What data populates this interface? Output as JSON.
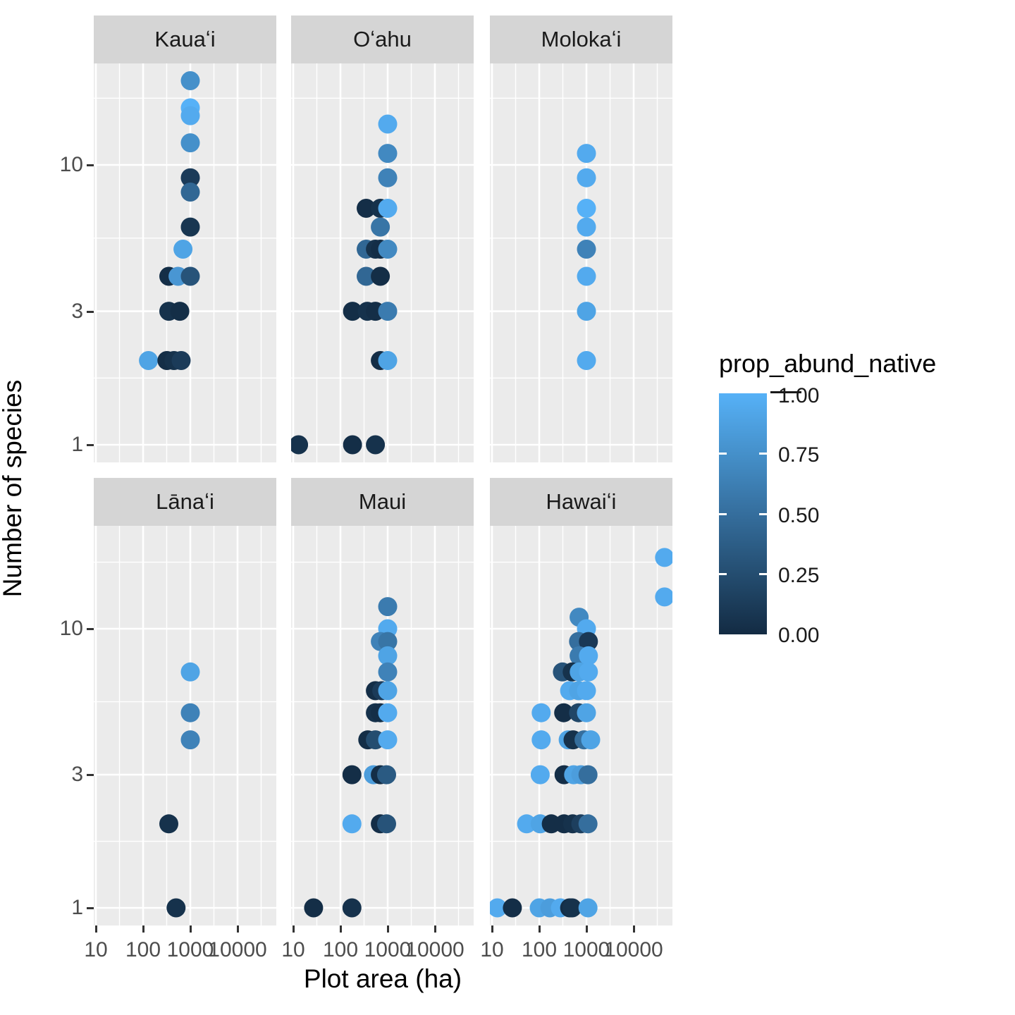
{
  "axes": {
    "x_title": "Plot area (ha)",
    "y_title": "Number of species",
    "y_tick_labels": [
      "10",
      "3",
      "1"
    ],
    "x_tick_labels": [
      "10",
      "100",
      "1000",
      "10000"
    ]
  },
  "legend": {
    "title": "prop_abund_native",
    "labels": [
      "1.00",
      "0.75",
      "0.50",
      "0.25",
      "0.00"
    ],
    "color_high": "#56B1F7",
    "color_low": "#132B43"
  },
  "style": {
    "panel_background": "#EBEBEB",
    "strip_background": "#D5D5D5",
    "gridline_color": "#FFFFFF"
  },
  "chart_data": {
    "type": "scatter",
    "facet_variable": "island",
    "facets_order": [
      "Kauaʻi",
      "Oʻahu",
      "Molokaʻi",
      "Lānaʻi",
      "Maui",
      "Hawaiʻi"
    ],
    "xlabel": "Plot area (ha)",
    "ylabel": "Number of species",
    "x_scale": "log10",
    "y_scale": "log10",
    "x_ticks": [
      10,
      100,
      1000,
      10000
    ],
    "y_ticks": [
      1,
      3,
      10
    ],
    "x_range_log10": [
      0.955,
      4.82
    ],
    "y_range_approx": [
      0.87,
      25
    ],
    "grid": true,
    "legend_position": "right",
    "color": {
      "variable": "prop_abund_native",
      "low": "#132B43",
      "high": "#56B1F7",
      "breaks": [
        0,
        0.25,
        0.5,
        0.75,
        1
      ]
    },
    "series": [
      {
        "name": "Kauaʻi",
        "points": [
          {
            "area": 1000,
            "species": 20,
            "prop": 0.75
          },
          {
            "area": 1000,
            "species": 16,
            "prop": 1.0
          },
          {
            "area": 1000,
            "species": 15,
            "prop": 0.95
          },
          {
            "area": 1000,
            "species": 12,
            "prop": 0.75
          },
          {
            "area": 1000,
            "species": 9,
            "prop": 0.12
          },
          {
            "area": 1000,
            "species": 8,
            "prop": 0.45
          },
          {
            "area": 1000,
            "species": 6,
            "prop": 0.08
          },
          {
            "area": 700,
            "species": 5,
            "prop": 0.9
          },
          {
            "area": 350,
            "species": 4,
            "prop": 0.02
          },
          {
            "area": 550,
            "species": 4,
            "prop": 0.8
          },
          {
            "area": 1000,
            "species": 4,
            "prop": 0.3
          },
          {
            "area": 350,
            "species": 3,
            "prop": 0.05
          },
          {
            "area": 600,
            "species": 3,
            "prop": 0.02
          },
          {
            "area": 130,
            "species": 2,
            "prop": 0.9
          },
          {
            "area": 320,
            "species": 2,
            "prop": 0.02
          },
          {
            "area": 450,
            "species": 2,
            "prop": 0.05
          },
          {
            "area": 640,
            "species": 2,
            "prop": 0.12
          }
        ]
      },
      {
        "name": "Oʻahu",
        "points": [
          {
            "area": 1000,
            "species": 14,
            "prop": 0.95
          },
          {
            "area": 1000,
            "species": 11,
            "prop": 0.7
          },
          {
            "area": 1000,
            "species": 9,
            "prop": 0.65
          },
          {
            "area": 350,
            "species": 7,
            "prop": 0.02
          },
          {
            "area": 700,
            "species": 7,
            "prop": 0.05
          },
          {
            "area": 1000,
            "species": 7,
            "prop": 0.95
          },
          {
            "area": 700,
            "species": 6,
            "prop": 0.55
          },
          {
            "area": 350,
            "species": 5,
            "prop": 0.45
          },
          {
            "area": 550,
            "species": 5,
            "prop": 0.05
          },
          {
            "area": 700,
            "species": 5,
            "prop": 0.02
          },
          {
            "area": 1000,
            "species": 5,
            "prop": 0.7
          },
          {
            "area": 350,
            "species": 4,
            "prop": 0.45
          },
          {
            "area": 700,
            "species": 4,
            "prop": 0.02
          },
          {
            "area": 180,
            "species": 3,
            "prop": 0.02
          },
          {
            "area": 370,
            "species": 3,
            "prop": 0.05
          },
          {
            "area": 550,
            "species": 3,
            "prop": 0.02
          },
          {
            "area": 1000,
            "species": 3,
            "prop": 0.6
          },
          {
            "area": 700,
            "species": 2,
            "prop": 0.02
          },
          {
            "area": 1000,
            "species": 2,
            "prop": 0.9
          },
          {
            "area": 13,
            "species": 1,
            "prop": 0.05
          },
          {
            "area": 180,
            "species": 1,
            "prop": 0.02
          },
          {
            "area": 550,
            "species": 1,
            "prop": 0.05
          }
        ]
      },
      {
        "name": "Molokaʻi",
        "points": [
          {
            "area": 1000,
            "species": 11,
            "prop": 0.95
          },
          {
            "area": 1000,
            "species": 9,
            "prop": 0.95
          },
          {
            "area": 1000,
            "species": 7,
            "prop": 1.0
          },
          {
            "area": 1000,
            "species": 6,
            "prop": 0.95
          },
          {
            "area": 1000,
            "species": 5,
            "prop": 0.65
          },
          {
            "area": 1000,
            "species": 4,
            "prop": 0.95
          },
          {
            "area": 1000,
            "species": 3,
            "prop": 0.9
          },
          {
            "area": 1000,
            "species": 2,
            "prop": 0.95
          }
        ]
      },
      {
        "name": "Lānaʻi",
        "points": [
          {
            "area": 1000,
            "species": 7,
            "prop": 0.9
          },
          {
            "area": 1000,
            "species": 5,
            "prop": 0.65
          },
          {
            "area": 1000,
            "species": 4,
            "prop": 0.65
          },
          {
            "area": 350,
            "species": 2,
            "prop": 0.05
          },
          {
            "area": 500,
            "species": 1,
            "prop": 0.05
          }
        ]
      },
      {
        "name": "Maui",
        "points": [
          {
            "area": 1000,
            "species": 12,
            "prop": 0.6
          },
          {
            "area": 1000,
            "species": 10,
            "prop": 0.95
          },
          {
            "area": 700,
            "species": 9,
            "prop": 0.65
          },
          {
            "area": 1000,
            "species": 9,
            "prop": 0.55
          },
          {
            "area": 1000,
            "species": 8,
            "prop": 0.9
          },
          {
            "area": 1000,
            "species": 7,
            "prop": 0.65
          },
          {
            "area": 550,
            "species": 6,
            "prop": 0.02
          },
          {
            "area": 750,
            "species": 6,
            "prop": 0.12
          },
          {
            "area": 1000,
            "species": 6,
            "prop": 0.9
          },
          {
            "area": 550,
            "species": 5,
            "prop": 0.05
          },
          {
            "area": 700,
            "species": 5,
            "prop": 0.02
          },
          {
            "area": 1000,
            "species": 5,
            "prop": 0.95
          },
          {
            "area": 380,
            "species": 4,
            "prop": 0.02
          },
          {
            "area": 550,
            "species": 4,
            "prop": 0.25
          },
          {
            "area": 1000,
            "species": 4,
            "prop": 0.95
          },
          {
            "area": 175,
            "species": 3,
            "prop": 0.02
          },
          {
            "area": 500,
            "species": 3,
            "prop": 0.85
          },
          {
            "area": 700,
            "species": 3,
            "prop": 0.02
          },
          {
            "area": 950,
            "species": 3,
            "prop": 0.35
          },
          {
            "area": 175,
            "species": 2,
            "prop": 0.95
          },
          {
            "area": 700,
            "species": 2,
            "prop": 0.02
          },
          {
            "area": 950,
            "species": 2,
            "prop": 0.3
          },
          {
            "area": 27,
            "species": 1,
            "prop": 0.02
          },
          {
            "area": 175,
            "species": 1,
            "prop": 0.05
          }
        ]
      },
      {
        "name": "Hawaiʻi",
        "points": [
          {
            "area": 45000,
            "species": 18,
            "prop": 0.95
          },
          {
            "area": 45000,
            "species": 13,
            "prop": 0.95
          },
          {
            "area": 700,
            "species": 11,
            "prop": 0.7
          },
          {
            "area": 1000,
            "species": 10,
            "prop": 0.95
          },
          {
            "area": 680,
            "species": 9,
            "prop": 0.5
          },
          {
            "area": 1100,
            "species": 9,
            "prop": 0.1
          },
          {
            "area": 700,
            "species": 8,
            "prop": 0.6
          },
          {
            "area": 1100,
            "species": 8,
            "prop": 0.95
          },
          {
            "area": 310,
            "species": 7,
            "prop": 0.3
          },
          {
            "area": 500,
            "species": 7,
            "prop": 0.05
          },
          {
            "area": 705,
            "species": 7,
            "prop": 0.9
          },
          {
            "area": 1100,
            "species": 7,
            "prop": 0.95
          },
          {
            "area": 440,
            "species": 6,
            "prop": 0.95
          },
          {
            "area": 680,
            "species": 6,
            "prop": 0.9
          },
          {
            "area": 1000,
            "species": 6,
            "prop": 0.95
          },
          {
            "area": 110,
            "species": 5,
            "prop": 0.95
          },
          {
            "area": 330,
            "species": 5,
            "prop": 0.02
          },
          {
            "area": 680,
            "species": 5,
            "prop": 0.2
          },
          {
            "area": 1000,
            "species": 5,
            "prop": 0.9
          },
          {
            "area": 110,
            "species": 4,
            "prop": 0.95
          },
          {
            "area": 410,
            "species": 4,
            "prop": 0.9
          },
          {
            "area": 520,
            "species": 4,
            "prop": 0.05
          },
          {
            "area": 890,
            "species": 4,
            "prop": 0.5
          },
          {
            "area": 1230,
            "species": 4,
            "prop": 0.9
          },
          {
            "area": 105,
            "species": 3,
            "prop": 0.95
          },
          {
            "area": 335,
            "species": 3,
            "prop": 0.02
          },
          {
            "area": 535,
            "species": 3,
            "prop": 0.9
          },
          {
            "area": 760,
            "species": 3,
            "prop": 0.85
          },
          {
            "area": 1080,
            "species": 3,
            "prop": 0.5
          },
          {
            "area": 54,
            "species": 2,
            "prop": 0.95
          },
          {
            "area": 105,
            "species": 2,
            "prop": 0.9
          },
          {
            "area": 180,
            "species": 2,
            "prop": 0.02
          },
          {
            "area": 335,
            "species": 2,
            "prop": 0.02
          },
          {
            "area": 510,
            "species": 2,
            "prop": 0.05
          },
          {
            "area": 760,
            "species": 2,
            "prop": 0.15
          },
          {
            "area": 1080,
            "species": 2,
            "prop": 0.5
          },
          {
            "area": 13,
            "species": 1,
            "prop": 0.95
          },
          {
            "area": 27,
            "species": 1,
            "prop": 0.02
          },
          {
            "area": 100,
            "species": 1,
            "prop": 0.9
          },
          {
            "area": 168,
            "species": 1,
            "prop": 0.85
          },
          {
            "area": 280,
            "species": 1,
            "prop": 0.95
          },
          {
            "area": 440,
            "species": 1,
            "prop": 0.02
          },
          {
            "area": 500,
            "species": 1,
            "prop": 0.05
          },
          {
            "area": 1080,
            "species": 1,
            "prop": 0.9
          }
        ]
      }
    ]
  }
}
